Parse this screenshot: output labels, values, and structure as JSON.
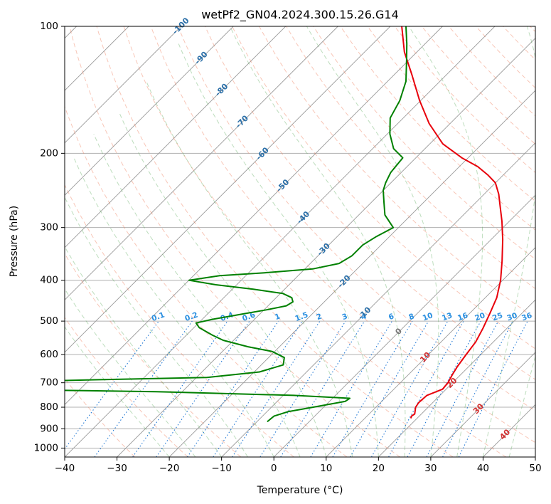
{
  "chart_data": {
    "type": "line",
    "title": "wetPf2_GN04.2024.300.15.26.G14",
    "xlabel": "Temperature (°C)",
    "ylabel": "Pressure (hPa)",
    "xlim": [
      -40,
      50
    ],
    "ylim": [
      1050,
      100
    ],
    "y_scale": "log",
    "skew": true,
    "grid": true,
    "x_ticks": [
      -40,
      -30,
      -20,
      -10,
      0,
      10,
      20,
      30,
      40,
      50
    ],
    "y_ticks": [
      100,
      200,
      300,
      400,
      500,
      600,
      700,
      800,
      900,
      1000
    ],
    "isotherm_labels": [
      -100,
      -90,
      -80,
      -70,
      -60,
      -50,
      -40,
      -30,
      -20,
      -10,
      0,
      10,
      20,
      30,
      40
    ],
    "mixing_ratio_labels": [
      "0.1",
      "0.2",
      "0.4",
      "0.6",
      "1",
      "1.5",
      "2",
      "3",
      "4",
      "6",
      "8",
      "10",
      "13",
      "16",
      "20",
      "25",
      "30",
      "36"
    ],
    "series": [
      {
        "color": "#e8000b",
        "points": [
          [
            850,
            18.8
          ],
          [
            840,
            18.5
          ],
          [
            830,
            18.7
          ],
          [
            800,
            17.6
          ],
          [
            780,
            17.3
          ],
          [
            750,
            17.5
          ],
          [
            725,
            19.3
          ],
          [
            700,
            19.1
          ],
          [
            670,
            18.4
          ],
          [
            640,
            17.8
          ],
          [
            600,
            17.2
          ],
          [
            560,
            16.6
          ],
          [
            520,
            15.4
          ],
          [
            480,
            13.9
          ],
          [
            440,
            12.2
          ],
          [
            400,
            9.6
          ],
          [
            360,
            6.2
          ],
          [
            320,
            2.2
          ],
          [
            290,
            -1.4
          ],
          [
            270,
            -4.2
          ],
          [
            250,
            -7.2
          ],
          [
            235,
            -10.0
          ],
          [
            225,
            -13.0
          ],
          [
            215,
            -16.5
          ],
          [
            205,
            -21.2
          ],
          [
            190,
            -27.5
          ],
          [
            170,
            -34.0
          ],
          [
            150,
            -40.2
          ],
          [
            130,
            -46.7
          ],
          [
            115,
            -52.4
          ],
          [
            100,
            -57.8
          ]
        ]
      },
      {
        "color": "#008000",
        "points": [
          [
            866,
            -8.0
          ],
          [
            840,
            -7.8
          ],
          [
            820,
            -6.0
          ],
          [
            800,
            -2.0
          ],
          [
            775,
            3.0
          ],
          [
            762,
            3.3
          ],
          [
            750,
            -8.0
          ],
          [
            735,
            -35.0
          ],
          [
            720,
            -85.0
          ],
          [
            700,
            -75.0
          ],
          [
            680,
            -28.0
          ],
          [
            660,
            -19.0
          ],
          [
            635,
            -15.8
          ],
          [
            610,
            -17.0
          ],
          [
            590,
            -20.5
          ],
          [
            575,
            -26.0
          ],
          [
            555,
            -32.0
          ],
          [
            540,
            -35.0
          ],
          [
            518,
            -39.0
          ],
          [
            505,
            -40.5
          ],
          [
            495,
            -38.0
          ],
          [
            480,
            -33.0
          ],
          [
            470,
            -29.5
          ],
          [
            460,
            -26.5
          ],
          [
            450,
            -26.0
          ],
          [
            440,
            -27.0
          ],
          [
            430,
            -29.5
          ],
          [
            420,
            -36.0
          ],
          [
            410,
            -44.0
          ],
          [
            400,
            -50.0
          ],
          [
            390,
            -45.0
          ],
          [
            384,
            -37.0
          ],
          [
            376,
            -28.5
          ],
          [
            365,
            -24.5
          ],
          [
            350,
            -23.5
          ],
          [
            330,
            -23.5
          ],
          [
            315,
            -22.5
          ],
          [
            300,
            -21.0
          ],
          [
            280,
            -25.0
          ],
          [
            262,
            -27.5
          ],
          [
            245,
            -30.0
          ],
          [
            235,
            -31.0
          ],
          [
            222,
            -32.0
          ],
          [
            205,
            -32.5
          ],
          [
            195,
            -36.0
          ],
          [
            180,
            -39.5
          ],
          [
            165,
            -42.5
          ],
          [
            150,
            -44.0
          ],
          [
            135,
            -46.5
          ],
          [
            120,
            -50.5
          ],
          [
            110,
            -53.5
          ],
          [
            100,
            -57.0
          ]
        ]
      }
    ]
  }
}
